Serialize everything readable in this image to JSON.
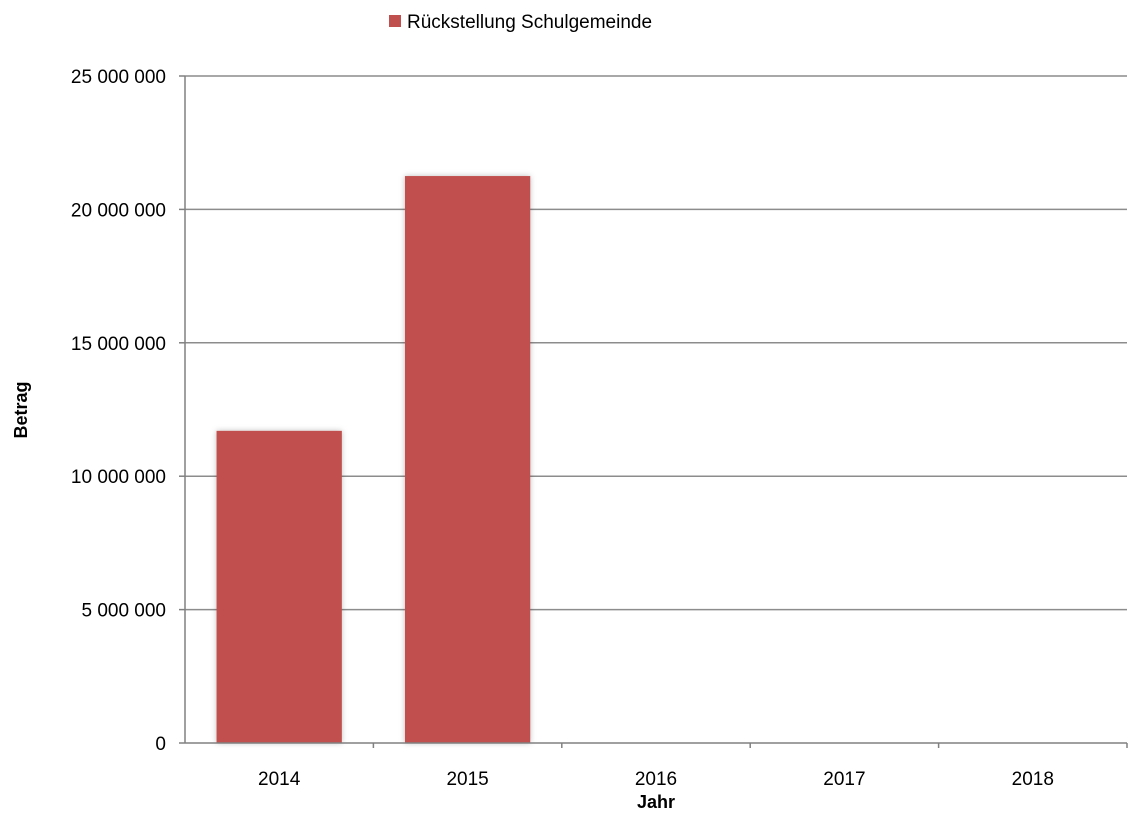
{
  "chart_data": {
    "type": "bar",
    "categories": [
      "2014",
      "2015",
      "2016",
      "2017",
      "2018"
    ],
    "series": [
      {
        "name": "Rückstellung Schulgemeinde",
        "values": [
          11700000,
          21250000,
          0,
          0,
          0
        ],
        "color": "#c0504d"
      }
    ],
    "xlabel": "Jahr",
    "ylabel": "Betrag",
    "ylim": [
      0,
      25000000
    ],
    "yticks": [
      0,
      5000000,
      10000000,
      15000000,
      20000000,
      25000000
    ],
    "ytick_labels": [
      "0",
      "5 000 000",
      "10 000 000",
      "15 000 000",
      "20 000 000",
      "25 000 000"
    ],
    "grid": true,
    "legend_position": "top"
  }
}
